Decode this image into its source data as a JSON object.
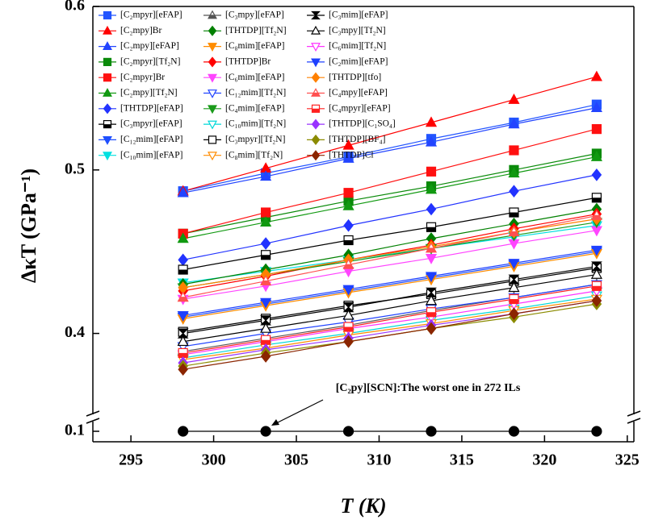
{
  "chart_data": {
    "type": "line",
    "x_label": "T (K)",
    "y_label": "ΔκT (GPa⁻¹)",
    "annotation": "[C₂py][SCN]:The worst one in 272 ILs",
    "x": [
      298.15,
      303.15,
      308.15,
      313.15,
      318.15,
      323.15
    ],
    "xlim": [
      292.7,
      325.4
    ],
    "xticks": [
      295,
      300,
      305,
      310,
      315,
      320,
      325
    ],
    "ylim": [
      0.35,
      0.6
    ],
    "yticks": [
      0.4,
      0.5,
      0.6
    ],
    "lower_ylim": [
      0.095,
      0.105
    ],
    "lower_yticks": [
      0.1
    ],
    "legend": "upper left",
    "series": [
      {
        "name": "[C₂mpyr][eFAP]",
        "color": "#2255ff",
        "marker": "square",
        "fill": "full",
        "values": [
          0.487,
          0.498,
          0.508,
          0.519,
          0.529,
          0.54
        ]
      },
      {
        "name": "[C₂mpy]Br",
        "color": "#ff0000",
        "marker": "triangle",
        "fill": "full",
        "values": [
          0.487,
          0.501,
          0.515,
          0.529,
          0.543,
          0.557
        ]
      },
      {
        "name": "[C₂mpy][eFAP]",
        "color": "#2244ff",
        "marker": "triangle",
        "fill": "full",
        "values": [
          0.486,
          0.496,
          0.507,
          0.517,
          0.528,
          0.538
        ]
      },
      {
        "name": "[C₂mpyr][Tf₂N]",
        "color": "#0a8a0a",
        "marker": "square",
        "fill": "full",
        "values": [
          0.461,
          0.471,
          0.481,
          0.49,
          0.5,
          0.51
        ]
      },
      {
        "name": "[C₂mpyr]Br",
        "color": "#ff1010",
        "marker": "square",
        "fill": "full",
        "values": [
          0.461,
          0.474,
          0.486,
          0.499,
          0.512,
          0.525
        ]
      },
      {
        "name": "[C₂mpy][Tf₂N]",
        "color": "#119911",
        "marker": "triangle",
        "fill": "full",
        "values": [
          0.458,
          0.468,
          0.478,
          0.488,
          0.498,
          0.508
        ]
      },
      {
        "name": "[THTDP][eFAP]",
        "color": "#2233ff",
        "marker": "diamond",
        "fill": "full",
        "values": [
          0.445,
          0.455,
          0.466,
          0.476,
          0.487,
          0.497
        ]
      },
      {
        "name": "[C₃mpyr][eFAP]",
        "color": "#000000",
        "marker": "square",
        "fill": "half",
        "values": [
          0.439,
          0.448,
          0.457,
          0.465,
          0.474,
          0.483
        ]
      },
      {
        "name": "[C₁₂mim][eFAP]",
        "color": "#1f4fff",
        "marker": "down",
        "fill": "full",
        "values": [
          0.41,
          0.418,
          0.426,
          0.434,
          0.442,
          0.45
        ]
      },
      {
        "name": "[C₁₀mim][eFAP]",
        "color": "#00e0e0",
        "marker": "down",
        "fill": "full",
        "values": [
          0.431,
          0.438,
          0.445,
          0.452,
          0.459,
          0.466
        ]
      },
      {
        "name": "[C₃mpy][eFAP]",
        "color": "#555555",
        "marker": "triangle",
        "fill": "half",
        "values": [
          0.389,
          0.397,
          0.405,
          0.414,
          0.422,
          0.43
        ]
      },
      {
        "name": "[THTDP][Tf₂N]",
        "color": "#008000",
        "marker": "diamond",
        "fill": "full",
        "values": [
          0.43,
          0.439,
          0.448,
          0.458,
          0.467,
          0.476
        ]
      },
      {
        "name": "[C₈mim][eFAP]",
        "color": "#ff8c00",
        "marker": "down",
        "fill": "full",
        "values": [
          0.409,
          0.417,
          0.425,
          0.433,
          0.441,
          0.449
        ]
      },
      {
        "name": "[THTDP]Br",
        "color": "#ff0000",
        "marker": "diamond",
        "fill": "full",
        "values": [
          0.426,
          0.435,
          0.445,
          0.454,
          0.464,
          0.473
        ]
      },
      {
        "name": "[C₆mim][eFAP]",
        "color": "#ff44ff",
        "marker": "down",
        "fill": "full",
        "values": [
          0.421,
          0.429,
          0.438,
          0.446,
          0.455,
          0.463
        ]
      },
      {
        "name": "[C₁₂mim][Tf₂N]",
        "color": "#2244ff",
        "marker": "down",
        "fill": "open",
        "values": [
          0.392,
          0.4,
          0.407,
          0.415,
          0.422,
          0.43
        ]
      },
      {
        "name": "[C₄mim][eFAP]",
        "color": "#1a9a1a",
        "marker": "down",
        "fill": "full",
        "values": [
          0.428,
          0.436,
          0.444,
          0.452,
          0.46,
          0.468
        ]
      },
      {
        "name": "[C₁₀mim][Tf₂N]",
        "color": "#00d8d8",
        "marker": "down",
        "fill": "open",
        "values": [
          0.385,
          0.393,
          0.4,
          0.408,
          0.415,
          0.423
        ]
      },
      {
        "name": "[C₃mpyr][Tf₂N]",
        "color": "#000000",
        "marker": "square",
        "fill": "open",
        "values": [
          0.401,
          0.409,
          0.417,
          0.424,
          0.432,
          0.44
        ]
      },
      {
        "name": "[C₈mim][Tf₂N]",
        "color": "#ff8c00",
        "marker": "down",
        "fill": "open",
        "values": [
          0.384,
          0.391,
          0.399,
          0.406,
          0.414,
          0.421
        ]
      },
      {
        "name": "[C₃mim][eFAP]",
        "color": "#000000",
        "marker": "hourglass",
        "fill": "full",
        "values": [
          0.4,
          0.408,
          0.416,
          0.425,
          0.433,
          0.441
        ]
      },
      {
        "name": "[C₃mpy][Tf₂N]",
        "color": "#000000",
        "marker": "triangle",
        "fill": "open",
        "values": [
          0.395,
          0.403,
          0.411,
          0.42,
          0.428,
          0.436
        ]
      },
      {
        "name": "[C₆mim][Tf₂N]",
        "color": "#ff33ff",
        "marker": "down",
        "fill": "open",
        "values": [
          0.387,
          0.395,
          0.403,
          0.41,
          0.418,
          0.426
        ]
      },
      {
        "name": "[C₂mim][eFAP]",
        "color": "#1e40ff",
        "marker": "down",
        "fill": "full",
        "values": [
          0.411,
          0.419,
          0.427,
          0.435,
          0.443,
          0.451
        ]
      },
      {
        "name": "[THTDP][tfo]",
        "color": "#ff8000",
        "marker": "diamond",
        "fill": "full",
        "values": [
          0.428,
          0.436,
          0.445,
          0.453,
          0.462,
          0.47
        ]
      },
      {
        "name": "[C₄mpy][eFAP]",
        "color": "#ff5050",
        "marker": "triangle",
        "fill": "half",
        "values": [
          0.422,
          0.432,
          0.442,
          0.452,
          0.462,
          0.472
        ]
      },
      {
        "name": "[C₄mpyr][eFAP]",
        "color": "#ff2020",
        "marker": "square",
        "fill": "half",
        "values": [
          0.388,
          0.396,
          0.404,
          0.413,
          0.421,
          0.429
        ]
      },
      {
        "name": "[THTDP][C₁SO₄]",
        "color": "#9933ff",
        "marker": "diamond",
        "fill": "full",
        "values": [
          0.382,
          0.39,
          0.397,
          0.405,
          0.412,
          0.42
        ]
      },
      {
        "name": "[THTDP][BF₄]",
        "color": "#8b8b00",
        "marker": "diamond",
        "fill": "full",
        "values": [
          0.38,
          0.388,
          0.395,
          0.403,
          0.41,
          0.418
        ]
      },
      {
        "name": "[THTDP]Cl",
        "color": "#8b2500",
        "marker": "diamond",
        "fill": "full",
        "values": [
          0.378,
          0.386,
          0.395,
          0.403,
          0.412,
          0.42
        ]
      },
      {
        "color": "#000000",
        "marker": "circle",
        "fill": "full",
        "axis": "lower",
        "values": [
          0.1,
          0.1,
          0.1,
          0.1,
          0.1,
          0.1
        ]
      }
    ]
  }
}
